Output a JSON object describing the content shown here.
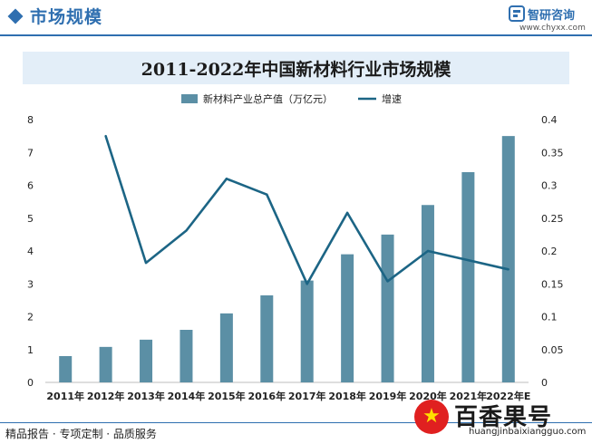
{
  "header": {
    "section_title": "市场规模",
    "brand_name": "智研咨询",
    "brand_url": "www.chyxx.com"
  },
  "colors": {
    "accent": "#2f6fb0",
    "bar": "#5b8fa5",
    "line": "#1c6585",
    "title_bg": "#e3eef8"
  },
  "icons": {
    "section": "diamond-icon",
    "logo": "brand-logo-icon",
    "badge": "star-icon"
  },
  "footer": {
    "slogan": "精品报告 · 专项定制 · 品质服务"
  },
  "badge": {
    "name": "百香果号",
    "url": "huangjinbaixiangguo.com"
  },
  "chart_data": {
    "type": "bar",
    "title": "2011-2022年中国新材料行业市场规模",
    "categories": [
      "2011年",
      "2012年",
      "2013年",
      "2014年",
      "2015年",
      "2016年",
      "2017年",
      "2018年",
      "2019年",
      "2020年",
      "2021年",
      "2022年E"
    ],
    "series": [
      {
        "name": "新材料产业总产值（万亿元）",
        "type": "bar",
        "axis": "left",
        "values": [
          0.8,
          1.08,
          1.3,
          1.6,
          2.1,
          2.65,
          3.1,
          3.9,
          4.5,
          5.4,
          6.4,
          7.5
        ]
      },
      {
        "name": "增速",
        "type": "line",
        "axis": "right",
        "values": [
          null,
          0.375,
          0.182,
          0.231,
          0.31,
          0.286,
          0.15,
          0.258,
          0.154,
          0.2,
          0.186,
          0.172
        ]
      }
    ],
    "left_axis": {
      "ylim": [
        0,
        8
      ],
      "ticks": [
        "0",
        "1",
        "2",
        "3",
        "4",
        "5",
        "6",
        "7",
        "8"
      ]
    },
    "right_axis": {
      "ylim": [
        0,
        0.4
      ],
      "ticks": [
        "0",
        "0.05",
        "0.1",
        "0.15",
        "0.2",
        "0.25",
        "0.3",
        "0.35",
        "0.4"
      ]
    },
    "legend_position": "top-center",
    "grid": false
  }
}
